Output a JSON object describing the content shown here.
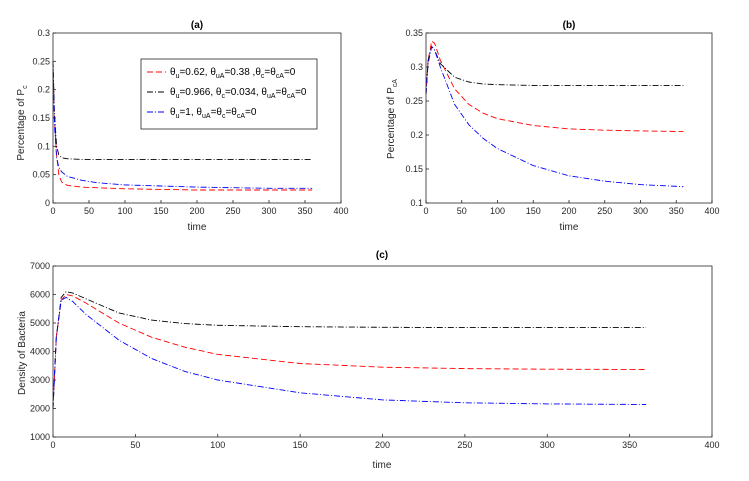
{
  "chart_data": [
    {
      "id": "a",
      "type": "line",
      "title": "(a)",
      "xlabel": "time",
      "ylabel_main": "Percentage of P",
      "ylabel_sub": "c",
      "xlim": [
        0,
        400
      ],
      "ylim": [
        0,
        0.3
      ],
      "xticks": [
        0,
        50,
        100,
        150,
        200,
        250,
        300,
        350,
        400
      ],
      "yticks": [
        0,
        0.05,
        0.1,
        0.15,
        0.2,
        0.25,
        0.3
      ],
      "ytick_labels": [
        "0",
        "0.05",
        "0.1",
        "0.15",
        "0.2",
        "0.25",
        "0.3"
      ],
      "grid": false,
      "legend_position": "inside top-right",
      "series": [
        {
          "key": "s1",
          "color": "#ff0000",
          "dash": "6,3",
          "x": [
            0,
            2,
            5,
            8,
            12,
            20,
            40,
            60,
            100,
            150,
            200,
            250,
            300,
            360
          ],
          "y": [
            0.25,
            0.15,
            0.085,
            0.05,
            0.037,
            0.031,
            0.028,
            0.027,
            0.025,
            0.024,
            0.023,
            0.023,
            0.023,
            0.023
          ]
        },
        {
          "key": "s2",
          "color": "#000000",
          "dash": "6,2,1,2",
          "x": [
            0,
            2,
            5,
            8,
            12,
            20,
            40,
            60,
            100,
            150,
            200,
            250,
            300,
            360
          ],
          "y": [
            0.25,
            0.16,
            0.1,
            0.085,
            0.08,
            0.078,
            0.077,
            0.077,
            0.077,
            0.077,
            0.077,
            0.077,
            0.077,
            0.077
          ]
        },
        {
          "key": "s3",
          "color": "#0000ff",
          "dash": "6,2,1,2",
          "x": [
            0,
            2,
            5,
            8,
            12,
            20,
            40,
            60,
            100,
            150,
            200,
            250,
            300,
            360
          ],
          "y": [
            0.25,
            0.14,
            0.08,
            0.063,
            0.055,
            0.047,
            0.04,
            0.036,
            0.032,
            0.03,
            0.028,
            0.027,
            0.026,
            0.026
          ]
        }
      ]
    },
    {
      "id": "b",
      "type": "line",
      "title": "(b)",
      "xlabel": "time",
      "ylabel_main": "Percentage of P",
      "ylabel_sub": "cA",
      "xlim": [
        0,
        400
      ],
      "ylim": [
        0.1,
        0.35
      ],
      "xticks": [
        0,
        50,
        100,
        150,
        200,
        250,
        300,
        350,
        400
      ],
      "yticks": [
        0.1,
        0.15,
        0.2,
        0.25,
        0.3,
        0.35
      ],
      "ytick_labels": [
        "0.1",
        "0.15",
        "0.2",
        "0.25",
        "0.3",
        "0.35"
      ],
      "grid": false,
      "series": [
        {
          "key": "s1",
          "color": "#ff0000",
          "dash": "6,3",
          "x": [
            0,
            3,
            8,
            12,
            20,
            40,
            60,
            80,
            100,
            150,
            200,
            250,
            300,
            360
          ],
          "y": [
            0.26,
            0.31,
            0.338,
            0.335,
            0.31,
            0.268,
            0.245,
            0.232,
            0.224,
            0.214,
            0.209,
            0.207,
            0.206,
            0.205
          ]
        },
        {
          "key": "s2",
          "color": "#000000",
          "dash": "6,2,1,2",
          "x": [
            0,
            3,
            8,
            12,
            20,
            40,
            60,
            80,
            100,
            150,
            200,
            250,
            300,
            360
          ],
          "y": [
            0.26,
            0.31,
            0.33,
            0.325,
            0.305,
            0.285,
            0.278,
            0.275,
            0.274,
            0.273,
            0.273,
            0.273,
            0.273,
            0.273
          ]
        },
        {
          "key": "s3",
          "color": "#0000ff",
          "dash": "6,2,1,2",
          "x": [
            0,
            3,
            8,
            12,
            20,
            40,
            60,
            80,
            100,
            150,
            200,
            250,
            300,
            360
          ],
          "y": [
            0.26,
            0.305,
            0.33,
            0.325,
            0.3,
            0.245,
            0.215,
            0.195,
            0.18,
            0.155,
            0.14,
            0.132,
            0.127,
            0.124
          ]
        }
      ]
    },
    {
      "id": "c",
      "type": "line",
      "title": "(c)",
      "xlabel": "time",
      "ylabel_main": "Density of Bacteria",
      "ylabel_sub": "",
      "xlim": [
        0,
        400
      ],
      "ylim": [
        1000,
        7000
      ],
      "xticks": [
        0,
        50,
        100,
        150,
        200,
        250,
        300,
        350,
        400
      ],
      "yticks": [
        1000,
        2000,
        3000,
        4000,
        5000,
        6000,
        7000
      ],
      "ytick_labels": [
        "1000",
        "2000",
        "3000",
        "4000",
        "5000",
        "6000",
        "7000"
      ],
      "grid": false,
      "series": [
        {
          "key": "s1",
          "color": "#ff0000",
          "dash": "6,3",
          "x": [
            0,
            2,
            5,
            8,
            12,
            20,
            40,
            60,
            80,
            100,
            150,
            200,
            250,
            300,
            360
          ],
          "y": [
            2000,
            4500,
            5800,
            6000,
            5950,
            5700,
            5000,
            4500,
            4150,
            3900,
            3580,
            3450,
            3400,
            3380,
            3370
          ]
        },
        {
          "key": "s2",
          "color": "#000000",
          "dash": "6,2,1,2",
          "x": [
            0,
            2,
            5,
            8,
            12,
            20,
            40,
            60,
            80,
            100,
            150,
            200,
            250,
            300,
            360
          ],
          "y": [
            2000,
            4500,
            5900,
            6100,
            6050,
            5850,
            5350,
            5100,
            4980,
            4920,
            4870,
            4850,
            4840,
            4840,
            4840
          ]
        },
        {
          "key": "s3",
          "color": "#0000ff",
          "dash": "6,2,1,2",
          "x": [
            0,
            2,
            5,
            8,
            12,
            20,
            40,
            60,
            80,
            100,
            150,
            200,
            250,
            300,
            360
          ],
          "y": [
            2000,
            4500,
            5800,
            5900,
            5750,
            5300,
            4400,
            3750,
            3300,
            3000,
            2550,
            2300,
            2200,
            2160,
            2140
          ]
        }
      ]
    }
  ],
  "legend": [
    {
      "key": "s1",
      "color": "#ff0000",
      "dash": "6,3",
      "parts": [
        [
          "θ",
          "u"
        ],
        [
          "=0.62, θ",
          "uA"
        ],
        [
          "=0.38 ,θ",
          "c"
        ],
        [
          "=θ",
          "cA"
        ],
        [
          "=0",
          ""
        ]
      ]
    },
    {
      "key": "s2",
      "color": "#000000",
      "dash": "6,2,1,2",
      "parts": [
        [
          "θ",
          "u"
        ],
        [
          "=0.966, θ",
          "c"
        ],
        [
          "=0.034, θ",
          "uA"
        ],
        [
          "=θ",
          "cA"
        ],
        [
          "=0",
          ""
        ]
      ]
    },
    {
      "key": "s3",
      "color": "#0000ff",
      "dash": "6,2,1,2",
      "parts": [
        [
          "θ",
          "u"
        ],
        [
          "=1, θ",
          "uA"
        ],
        [
          "=θ",
          "c"
        ],
        [
          "=θ",
          "cA"
        ],
        [
          "=0",
          ""
        ]
      ]
    }
  ]
}
